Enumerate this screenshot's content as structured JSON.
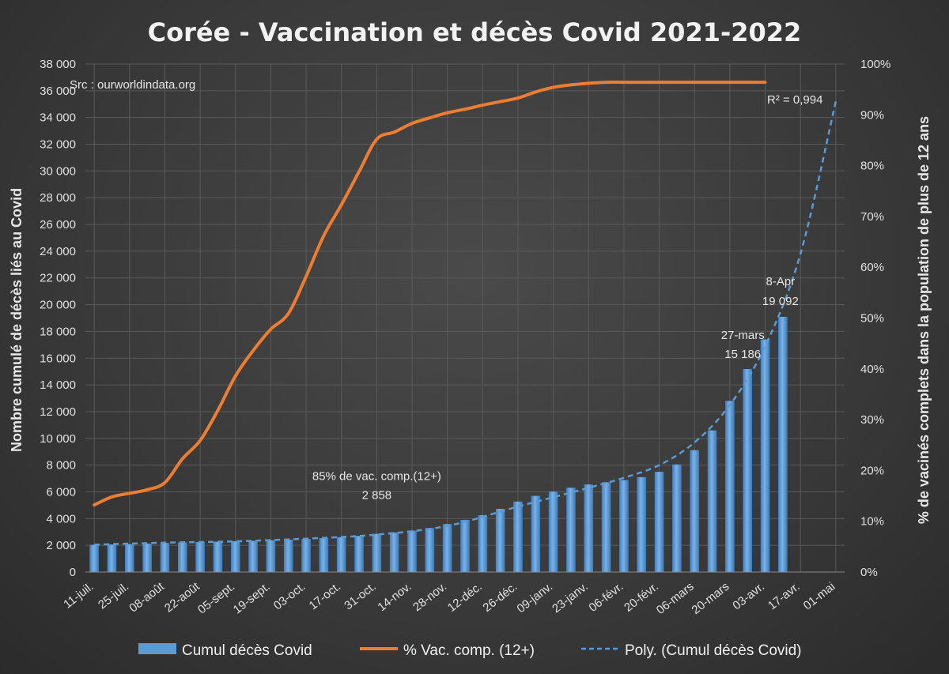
{
  "chart_data": {
    "type": "bar",
    "title": "Corée  - Vaccination et décès Covid 2021-2022",
    "source_note": "Src : ourworldindata.org",
    "ylabel_left": "Nombre cumulé de décès liés au Covid",
    "ylabel_right": "% de vacinés complets dans  la population de plus de 12 ans",
    "ylim_left": [
      0,
      38000
    ],
    "ylim_right": [
      0,
      100
    ],
    "y_ticks_left": [
      "0",
      "2 000",
      "4 000",
      "6 000",
      "8 000",
      "10 000",
      "12 000",
      "14 000",
      "16 000",
      "18 000",
      "20 000",
      "22 000",
      "24 000",
      "26 000",
      "28 000",
      "30 000",
      "32 000",
      "34 000",
      "36 000",
      "38 000"
    ],
    "y_ticks_right": [
      "0%",
      "10%",
      "20%",
      "30%",
      "40%",
      "50%",
      "60%",
      "70%",
      "80%",
      "90%",
      "100%"
    ],
    "x_tick_labels": [
      "11-juil.",
      "25-juil.",
      "08-août",
      "22-août",
      "05-sept.",
      "19-sept.",
      "03-oct.",
      "17-oct.",
      "31-oct.",
      "14-nov.",
      "28-nov.",
      "12-déc.",
      "26-déc.",
      "09-janv.",
      "23-janv.",
      "06-févr.",
      "20-févr.",
      "06-mars",
      "20-mars",
      "03-avr.",
      "17-avr.",
      "01-mai"
    ],
    "grid": true,
    "legend_position": "bottom",
    "bars": {
      "name": "Cumul décès Covid",
      "color": "#5b9bd5",
      "values": [
        2040,
        2060,
        2090,
        2130,
        2180,
        2220,
        2250,
        2270,
        2300,
        2330,
        2380,
        2430,
        2480,
        2540,
        2610,
        2700,
        2858,
        2960,
        3100,
        3290,
        3590,
        3890,
        4250,
        4730,
        5270,
        5700,
        6030,
        6310,
        6550,
        6720,
        6880,
        7100,
        7500,
        8050,
        9120,
        10600,
        12800,
        15186,
        17400,
        19092
      ]
    },
    "vaccination_line": {
      "name": "% Vac. comp. (12+)",
      "color": "#ed7d31",
      "points": [
        [
          0,
          13.2
        ],
        [
          1,
          14.8
        ],
        [
          2,
          15.5
        ],
        [
          3,
          16.2
        ],
        [
          4,
          17.6
        ],
        [
          5,
          22.3
        ],
        [
          6,
          25.9
        ],
        [
          7,
          31.8
        ],
        [
          8,
          38.6
        ],
        [
          9,
          43.6
        ],
        [
          10,
          47.8
        ],
        [
          11,
          50.9
        ],
        [
          12,
          58.2
        ],
        [
          13,
          66.2
        ],
        [
          14,
          72.3
        ],
        [
          15,
          78.8
        ],
        [
          16,
          85.2
        ],
        [
          17,
          86.6
        ],
        [
          18,
          88.3
        ],
        [
          19,
          89.4
        ],
        [
          20,
          90.4
        ],
        [
          21,
          91.1
        ],
        [
          22,
          91.9
        ],
        [
          23,
          92.6
        ],
        [
          24,
          93.3
        ],
        [
          25,
          94.5
        ],
        [
          26,
          95.4
        ],
        [
          27,
          95.9
        ],
        [
          28,
          96.2
        ],
        [
          29,
          96.4
        ],
        [
          30,
          96.4
        ],
        [
          31,
          96.4
        ],
        [
          32,
          96.4
        ],
        [
          33,
          96.4
        ],
        [
          34,
          96.4
        ],
        [
          35,
          96.4
        ],
        [
          36,
          96.4
        ],
        [
          37,
          96.4
        ],
        [
          38,
          96.4
        ]
      ]
    },
    "trend_line": {
      "name": "Poly. (Cumul décès Covid)",
      "color": "#5b9bd5",
      "r_squared": "R² = 0,994",
      "points": [
        [
          0,
          2050
        ],
        [
          4,
          2200
        ],
        [
          8,
          2300
        ],
        [
          12,
          2500
        ],
        [
          16,
          2800
        ],
        [
          20,
          3450
        ],
        [
          24,
          4900
        ],
        [
          28,
          6300
        ],
        [
          30,
          7050
        ],
        [
          32,
          8000
        ],
        [
          34,
          9700
        ],
        [
          36,
          12500
        ],
        [
          38,
          16900
        ],
        [
          40,
          23800
        ],
        [
          42,
          35200
        ]
      ]
    },
    "annotations": [
      {
        "line1": "85% de vac. comp.(12+)",
        "line2": "2 858",
        "bar_index": 16
      },
      {
        "line1": "27-mars",
        "line2": "15 186",
        "bar_index": 37
      },
      {
        "line1": "8-Apr",
        "line2": "19 092",
        "bar_index": 39
      }
    ]
  }
}
